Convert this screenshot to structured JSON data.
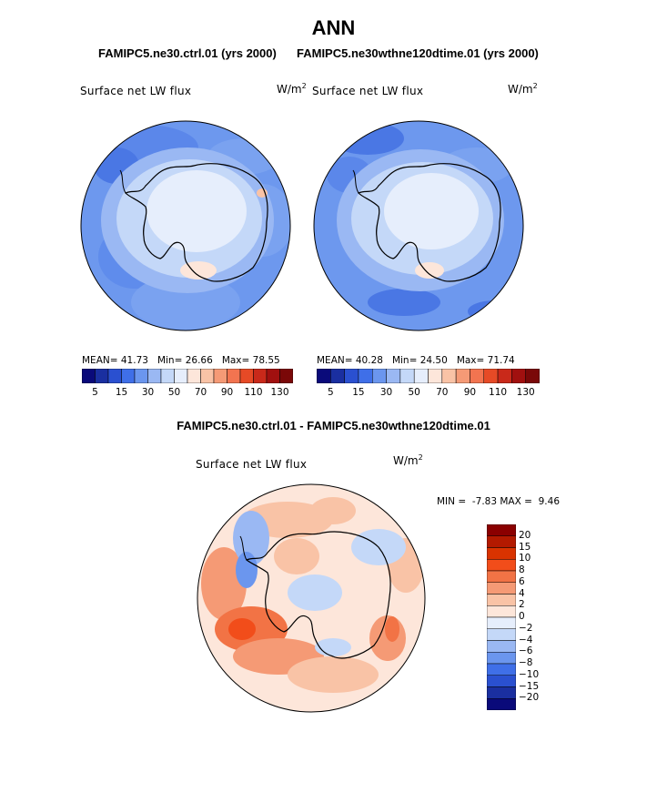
{
  "page": {
    "title": "ANN"
  },
  "panels": [
    {
      "case_title": "FAMIPC5.ne30.ctrl.01 (yrs 2000)",
      "variable": "Surface net LW flux",
      "units_base": "W/m",
      "units_exp": "2",
      "stats": {
        "mean_label": "MEAN=",
        "mean": "41.73",
        "min_label": "Min=",
        "min": "26.66",
        "max_label": "Max=",
        "max": "78.55"
      },
      "colorbar_labels": [
        "5",
        "15",
        "30",
        "50",
        "70",
        "90",
        "110",
        "130"
      ]
    },
    {
      "case_title": "FAMIPC5.ne30wthne120dtime.01 (yrs 2000)",
      "variable": "Surface net LW flux",
      "units_base": "W/m",
      "units_exp": "2",
      "stats": {
        "mean_label": "MEAN=",
        "mean": "40.28",
        "min_label": "Min=",
        "min": "24.50",
        "max_label": "Max=",
        "max": "71.74"
      },
      "colorbar_labels": [
        "5",
        "15",
        "30",
        "50",
        "70",
        "90",
        "110",
        "130"
      ]
    }
  ],
  "difference": {
    "title": "FAMIPC5.ne30.ctrl.01 - FAMIPC5.ne30wthne120dtime.01",
    "variable": "Surface net LW flux",
    "units_base": "W/m",
    "units_exp": "2",
    "min_label": "MIN =",
    "min": "-7.83",
    "max_label": "MAX =",
    "max": "9.46",
    "colorbar_labels": [
      "20",
      "15",
      "10",
      "8",
      "6",
      "4",
      "2",
      "0",
      "−2",
      "−4",
      "−6",
      "−8",
      "−10",
      "−15",
      "−20"
    ]
  },
  "colors": {
    "abs_scale": [
      "#0a0a7a",
      "#1a2fa0",
      "#2a50d0",
      "#3f6fe8",
      "#6b96ee",
      "#9ab8f3",
      "#c4d8f8",
      "#e6eefc",
      "#fde6da",
      "#f9c3a6",
      "#f59a76",
      "#f27450",
      "#e64a26",
      "#c9291a",
      "#a1100f",
      "#7a0808"
    ],
    "diff_scale": [
      "#8b0000",
      "#b31a00",
      "#d93300",
      "#f24d1a",
      "#f27345",
      "#f59a75",
      "#f9c3a6",
      "#fde6da",
      "#e6eefc",
      "#c4d8f8",
      "#9ab8f3",
      "#6b96ee",
      "#3f6fe8",
      "#2a50d0",
      "#1a2fa0",
      "#0a0a7a"
    ],
    "map_base_blue": "#6d98ee",
    "map_base_diff": "#fde6da"
  }
}
